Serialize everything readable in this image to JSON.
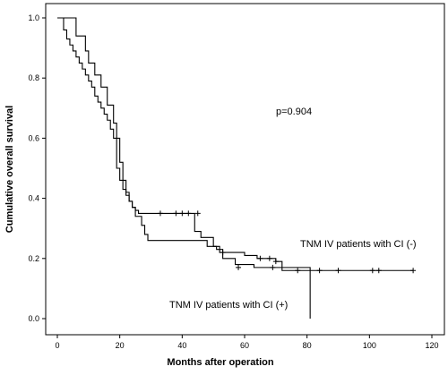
{
  "chart_data": {
    "type": "line",
    "xlabel": "Months after operation",
    "ylabel": "Cumulative overall survival",
    "xlim": [
      0,
      120
    ],
    "ylim": [
      0.0,
      1.0
    ],
    "xticks": [
      0,
      20,
      40,
      60,
      80,
      100,
      120
    ],
    "yticks": [
      0.0,
      0.2,
      0.4,
      0.6,
      0.8,
      1.0
    ],
    "ytick_labels": [
      "0.0",
      "0.2",
      "0.4",
      "0.6",
      "0.8",
      "1.0"
    ],
    "grid": false,
    "annotations": {
      "p_value": "p=0.904",
      "label_ci_neg": "TNM IV patients with CI (-)",
      "label_ci_pos": "TNM IV patients with CI (+)"
    },
    "series": [
      {
        "key": "ci_neg",
        "step_x": [
          0,
          2,
          3,
          4,
          5,
          6,
          7,
          8,
          9,
          10,
          11,
          12,
          13,
          14,
          15,
          16,
          17,
          18,
          19,
          20,
          21,
          22,
          23,
          24,
          25,
          26,
          28,
          30,
          40,
          42,
          44,
          46,
          50,
          52,
          56,
          60,
          64,
          68,
          70,
          72
        ],
        "step_y": [
          1.0,
          0.96,
          0.93,
          0.91,
          0.89,
          0.87,
          0.85,
          0.83,
          0.81,
          0.79,
          0.77,
          0.74,
          0.72,
          0.7,
          0.68,
          0.66,
          0.63,
          0.6,
          0.5,
          0.46,
          0.43,
          0.41,
          0.39,
          0.37,
          0.36,
          0.35,
          0.35,
          0.35,
          0.35,
          0.35,
          0.29,
          0.27,
          0.24,
          0.22,
          0.22,
          0.21,
          0.2,
          0.2,
          0.19,
          0.16
        ],
        "end_x": 114,
        "censor_x": [
          33,
          38,
          40,
          42,
          45,
          53,
          65,
          68,
          70,
          77,
          84,
          90,
          101,
          103,
          114
        ],
        "censor_y": [
          0.35,
          0.35,
          0.35,
          0.35,
          0.35,
          0.22,
          0.2,
          0.2,
          0.19,
          0.16,
          0.16,
          0.16,
          0.16,
          0.16,
          0.16
        ]
      },
      {
        "key": "ci_pos",
        "step_x": [
          0,
          6,
          9,
          10,
          12,
          14,
          16,
          18,
          19,
          20,
          21,
          22,
          23,
          24,
          25,
          27,
          28,
          29,
          30,
          48,
          51,
          53,
          57,
          63,
          68,
          71,
          73,
          80,
          81
        ],
        "step_y": [
          1.0,
          0.94,
          0.89,
          0.85,
          0.81,
          0.77,
          0.71,
          0.65,
          0.6,
          0.52,
          0.46,
          0.42,
          0.39,
          0.37,
          0.34,
          0.31,
          0.28,
          0.26,
          0.26,
          0.24,
          0.23,
          0.2,
          0.18,
          0.17,
          0.17,
          0.17,
          0.17,
          0.17,
          0.0
        ],
        "end_x": 81,
        "censor_x": [
          58,
          69
        ],
        "censor_y": [
          0.17,
          0.17
        ]
      }
    ]
  }
}
